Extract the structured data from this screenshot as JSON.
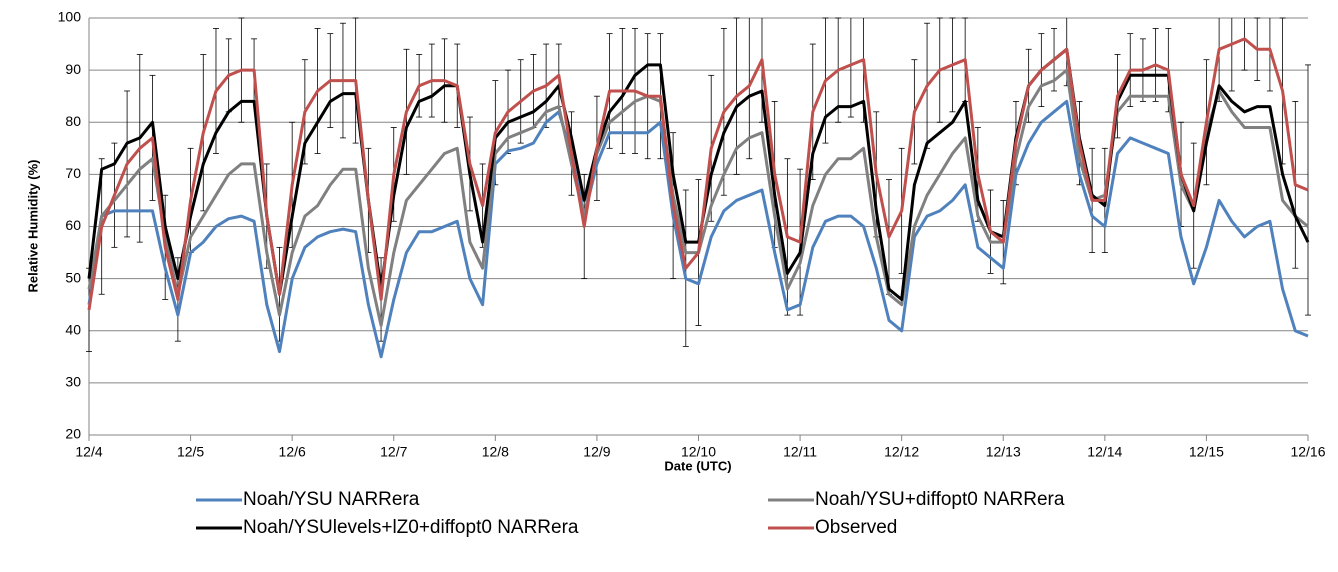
{
  "chart_data": {
    "type": "line",
    "y_label": "Relative Humidity (%)",
    "x_label": "Date (UTC)",
    "xlim": [
      0,
      12
    ],
    "xticks": [
      {
        "value": 0,
        "label": "12/4"
      },
      {
        "value": 1,
        "label": "12/5"
      },
      {
        "value": 2,
        "label": "12/6"
      },
      {
        "value": 3,
        "label": "12/7"
      },
      {
        "value": 4,
        "label": "12/8"
      },
      {
        "value": 5,
        "label": "12/9"
      },
      {
        "value": 6,
        "label": "12/10"
      },
      {
        "value": 7,
        "label": "12/11"
      },
      {
        "value": 8,
        "label": "12/12"
      },
      {
        "value": 9,
        "label": "12/13"
      },
      {
        "value": 10,
        "label": "12/14"
      },
      {
        "value": 11,
        "label": "12/15"
      },
      {
        "value": 12,
        "label": "12/16"
      }
    ],
    "ylim": [
      20,
      100
    ],
    "yticks": [
      20,
      30,
      40,
      50,
      60,
      70,
      80,
      90,
      100
    ],
    "grid": true,
    "legend": "bottom",
    "x": [
      0,
      0.125,
      0.25,
      0.375,
      0.5,
      0.625,
      0.75,
      0.875,
      1,
      1.125,
      1.25,
      1.375,
      1.5,
      1.625,
      1.75,
      1.875,
      2,
      2.125,
      2.25,
      2.375,
      2.5,
      2.625,
      2.75,
      2.875,
      3,
      3.125,
      3.25,
      3.375,
      3.5,
      3.625,
      3.75,
      3.875,
      4,
      4.125,
      4.25,
      4.375,
      4.5,
      4.625,
      4.75,
      4.875,
      5,
      5.125,
      5.25,
      5.375,
      5.5,
      5.625,
      5.75,
      5.875,
      6,
      6.125,
      6.25,
      6.375,
      6.5,
      6.625,
      6.75,
      6.875,
      7,
      7.125,
      7.25,
      7.375,
      7.5,
      7.625,
      7.75,
      7.875,
      8,
      8.125,
      8.25,
      8.375,
      8.5,
      8.625,
      8.75,
      8.875,
      9,
      9.125,
      9.25,
      9.375,
      9.5,
      9.625,
      9.75,
      9.875,
      10,
      10.125,
      10.25,
      10.375,
      10.5,
      10.625,
      10.75,
      10.875,
      11,
      11.125,
      11.25,
      11.375,
      11.5,
      11.625,
      11.75,
      11.875,
      12
    ],
    "series": [
      {
        "name": "Noah/YSU NARRera",
        "color": "#4f81bd",
        "values": [
          45,
          62,
          63,
          63,
          63,
          63,
          52,
          43,
          55,
          57,
          60,
          61.5,
          62,
          61,
          45,
          36,
          50,
          56,
          58,
          59,
          59.5,
          59,
          45,
          35,
          46,
          55,
          59,
          59,
          60,
          61,
          50,
          45,
          72,
          74.5,
          75,
          76,
          80,
          82,
          74,
          62,
          72,
          78,
          78,
          78,
          78,
          80,
          62,
          50,
          49,
          58,
          63,
          65,
          66,
          67,
          55,
          44,
          45,
          56,
          61,
          62,
          62,
          60,
          52,
          42,
          40,
          58,
          62,
          63,
          65,
          68,
          56,
          54,
          52,
          70,
          76,
          80,
          82,
          84,
          70,
          62,
          60,
          74,
          77,
          76,
          75,
          74,
          58,
          49,
          56,
          65,
          61,
          58,
          60,
          61,
          48,
          40,
          39
        ]
      },
      {
        "name": "Noah/YSU+diffopt0 NARRera",
        "color": "#808080",
        "values": [
          48,
          62,
          65,
          68,
          71,
          73,
          58,
          47,
          58,
          62,
          66,
          70,
          72,
          72,
          55,
          43,
          55,
          62,
          64,
          68,
          71,
          71,
          52,
          41,
          55,
          65,
          68,
          71,
          74,
          75,
          57,
          52,
          74,
          77,
          78,
          79,
          82,
          83,
          72,
          62,
          74,
          80,
          82,
          84,
          85,
          84,
          66,
          55,
          55,
          64,
          70,
          75,
          77,
          78,
          62,
          48,
          53,
          64,
          70,
          73,
          73,
          75,
          58,
          47,
          45,
          60,
          66,
          70,
          74,
          77,
          62,
          57,
          57,
          73,
          83,
          87,
          88,
          90,
          73,
          65,
          66,
          82,
          85,
          85,
          85,
          85,
          68,
          63,
          78,
          86,
          82,
          79,
          79,
          79,
          65,
          62,
          60
        ]
      },
      {
        "name": "Noah/YSUlevels+lZ0+diffopt0 NARRera",
        "color": "#000000",
        "values": [
          50,
          71,
          72,
          76,
          77,
          80,
          60,
          50,
          62,
          72,
          78,
          82,
          84,
          84,
          62,
          47,
          62,
          76,
          80,
          84,
          85.5,
          85.5,
          65,
          48,
          66,
          79,
          84,
          85,
          87,
          87,
          70,
          57,
          77,
          80,
          81,
          82,
          84,
          87,
          77,
          65,
          75,
          82,
          85,
          89,
          91,
          91,
          70,
          57,
          57,
          70,
          78,
          83,
          85,
          86,
          66,
          51,
          55,
          74,
          81,
          83,
          83,
          84,
          63,
          48,
          46,
          68,
          76,
          78,
          80,
          84,
          65,
          59,
          58,
          77,
          87,
          90,
          92,
          94,
          77,
          66,
          64,
          84,
          89,
          89,
          89,
          89,
          70,
          63,
          76,
          87,
          84,
          82,
          83,
          83,
          70,
          62,
          57
        ]
      },
      {
        "name": "Observed",
        "color": "#c0504d",
        "values": [
          44,
          60,
          66,
          72,
          75,
          77,
          56,
          46,
          65,
          78,
          86,
          89,
          90,
          90,
          62,
          47,
          68,
          82,
          86,
          88,
          88,
          88,
          65,
          46,
          70,
          82,
          87,
          88,
          88,
          87,
          72,
          64,
          78,
          82,
          84,
          86,
          87,
          89,
          74,
          60,
          75,
          86,
          86,
          86,
          85,
          85,
          64,
          52,
          55,
          75,
          82,
          85,
          87,
          92,
          70,
          58,
          57,
          82,
          88,
          90,
          91,
          92,
          70,
          58,
          63,
          82,
          87,
          90,
          91,
          92,
          70,
          59,
          57,
          76,
          87,
          90,
          92,
          94,
          76,
          65,
          65,
          85,
          90,
          90,
          91,
          90,
          70,
          64,
          80,
          94,
          95,
          96,
          94,
          94,
          86,
          68,
          67
        ],
        "errors": [
          8,
          13,
          10,
          14,
          18,
          12,
          10,
          8,
          10,
          15,
          12,
          7,
          10,
          6,
          10,
          9,
          12,
          10,
          12,
          9,
          11,
          12,
          10,
          8,
          9,
          12,
          6,
          7,
          8,
          8,
          9,
          8,
          10,
          8,
          8,
          7,
          8,
          6,
          8,
          10,
          10,
          11,
          12,
          12,
          12,
          12,
          14,
          15,
          14,
          14,
          16,
          15,
          14,
          12,
          14,
          15,
          14,
          13,
          12,
          10,
          10,
          12,
          12,
          11,
          12,
          10,
          12,
          10,
          9,
          8,
          9,
          8,
          8,
          8,
          7,
          7,
          6,
          7,
          8,
          10,
          10,
          8,
          7,
          6,
          7,
          8,
          10,
          12,
          12,
          10,
          9,
          6,
          6,
          8,
          14,
          16,
          24
        ]
      }
    ]
  }
}
